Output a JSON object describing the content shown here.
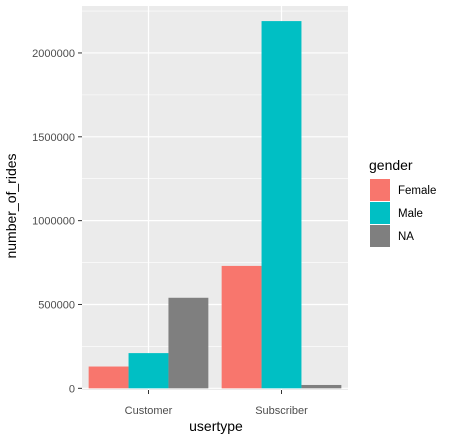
{
  "chart_data": {
    "type": "bar",
    "title": "",
    "xlabel": "usertype",
    "ylabel": "number_of_rides",
    "categories": [
      "Customer",
      "Subscriber"
    ],
    "series": [
      {
        "name": "Female",
        "color": "#F8766D",
        "values": [
          130000,
          730000
        ]
      },
      {
        "name": "Male",
        "color": "#00BFC4",
        "values": [
          210000,
          2190000
        ]
      },
      {
        "name": "NA",
        "color": "#7F7F7F",
        "values": [
          540000,
          20000
        ]
      }
    ],
    "ylim": [
      -10000,
      2280000
    ],
    "yticks": [
      0,
      500000,
      1000000,
      1500000,
      2000000
    ],
    "ytick_labels": [
      "0",
      "500000",
      "1000000",
      "1500000",
      "2000000"
    ],
    "grid": true,
    "legend": {
      "title": "gender",
      "placement": "right"
    },
    "colors": {
      "panel_background": "#EBEBEB",
      "grid": "#FFFFFF"
    }
  }
}
